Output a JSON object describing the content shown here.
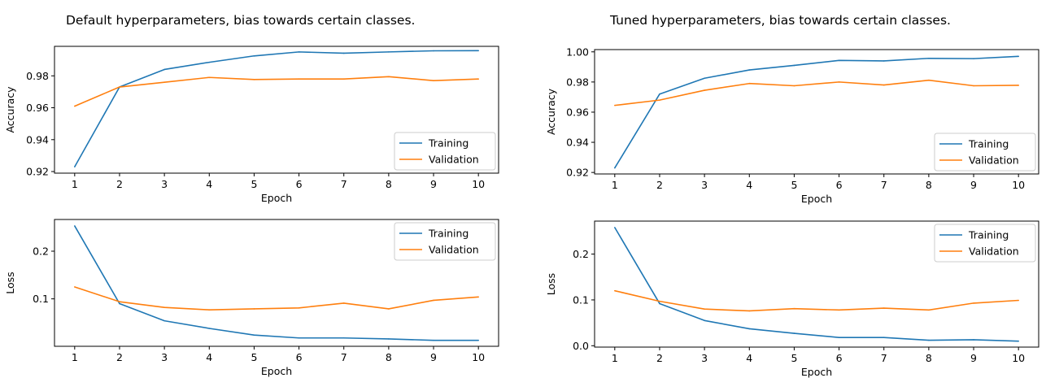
{
  "panels": [
    {
      "title": "Default hyperparameters, bias towards certain classes."
    },
    {
      "title": "Tuned hyperparameters, bias towards certain classes."
    }
  ],
  "colors": {
    "training": "#1f77b4",
    "validation": "#ff7f0e"
  },
  "chart_data": [
    {
      "type": "line",
      "panel": "Default hyperparameters, bias towards certain classes.",
      "xlabel": "Epoch",
      "ylabel": "Accuracy",
      "x": [
        1,
        2,
        3,
        4,
        5,
        6,
        7,
        8,
        9,
        10
      ],
      "xlim": [
        0.55,
        10.45
      ],
      "ylim": [
        0.919,
        0.9985
      ],
      "yticks": [
        0.92,
        0.94,
        0.96,
        0.98
      ],
      "legend": "bottom-right",
      "grid": false,
      "series": [
        {
          "name": "Training",
          "values": [
            0.923,
            0.973,
            0.984,
            0.9885,
            0.9925,
            0.995,
            0.9942,
            0.995,
            0.9957,
            0.9958
          ]
        },
        {
          "name": "Validation",
          "values": [
            0.961,
            0.973,
            0.976,
            0.979,
            0.9777,
            0.978,
            0.978,
            0.9795,
            0.977,
            0.978
          ]
        }
      ]
    },
    {
      "type": "line",
      "panel": "Tuned hyperparameters, bias towards certain classes.",
      "xlabel": "Epoch",
      "ylabel": "Accuracy",
      "x": [
        1,
        2,
        3,
        4,
        5,
        6,
        7,
        8,
        9,
        10
      ],
      "xlim": [
        0.55,
        10.45
      ],
      "ylim": [
        0.919,
        1.0015
      ],
      "yticks": [
        0.92,
        0.94,
        0.96,
        0.98,
        1.0
      ],
      "legend": "bottom-right",
      "grid": false,
      "series": [
        {
          "name": "Training",
          "values": [
            0.923,
            0.972,
            0.9825,
            0.988,
            0.991,
            0.9943,
            0.994,
            0.9957,
            0.9955,
            0.997
          ]
        },
        {
          "name": "Validation",
          "values": [
            0.9645,
            0.968,
            0.9745,
            0.979,
            0.9775,
            0.98,
            0.978,
            0.9812,
            0.9775,
            0.9778
          ]
        }
      ]
    },
    {
      "type": "line",
      "panel": "Default hyperparameters, bias towards certain classes.",
      "xlabel": "Epoch",
      "ylabel": "Loss",
      "x": [
        1,
        2,
        3,
        4,
        5,
        6,
        7,
        8,
        9,
        10
      ],
      "xlim": [
        0.55,
        10.45
      ],
      "ylim": [
        0.0005,
        0.2665
      ],
      "yticks": [
        0.1,
        0.2
      ],
      "legend": "top-right",
      "grid": false,
      "series": [
        {
          "name": "Training",
          "values": [
            0.253,
            0.09,
            0.054,
            0.038,
            0.024,
            0.018,
            0.018,
            0.016,
            0.013,
            0.013
          ]
        },
        {
          "name": "Validation",
          "values": [
            0.125,
            0.094,
            0.082,
            0.077,
            0.079,
            0.081,
            0.091,
            0.079,
            0.097,
            0.104
          ]
        }
      ]
    },
    {
      "type": "line",
      "panel": "Tuned hyperparameters, bias towards certain classes.",
      "xlabel": "Epoch",
      "ylabel": "Loss",
      "x": [
        1,
        2,
        3,
        4,
        5,
        6,
        7,
        8,
        9,
        10
      ],
      "xlim": [
        0.55,
        10.45
      ],
      "ylim": [
        -0.003,
        0.272
      ],
      "yticks": [
        0.0,
        0.1,
        0.2
      ],
      "legend": "top-right",
      "grid": false,
      "series": [
        {
          "name": "Training",
          "values": [
            0.258,
            0.092,
            0.055,
            0.037,
            0.027,
            0.018,
            0.018,
            0.012,
            0.013,
            0.01
          ]
        },
        {
          "name": "Validation",
          "values": [
            0.12,
            0.097,
            0.08,
            0.076,
            0.081,
            0.078,
            0.082,
            0.078,
            0.093,
            0.099
          ]
        }
      ]
    }
  ]
}
